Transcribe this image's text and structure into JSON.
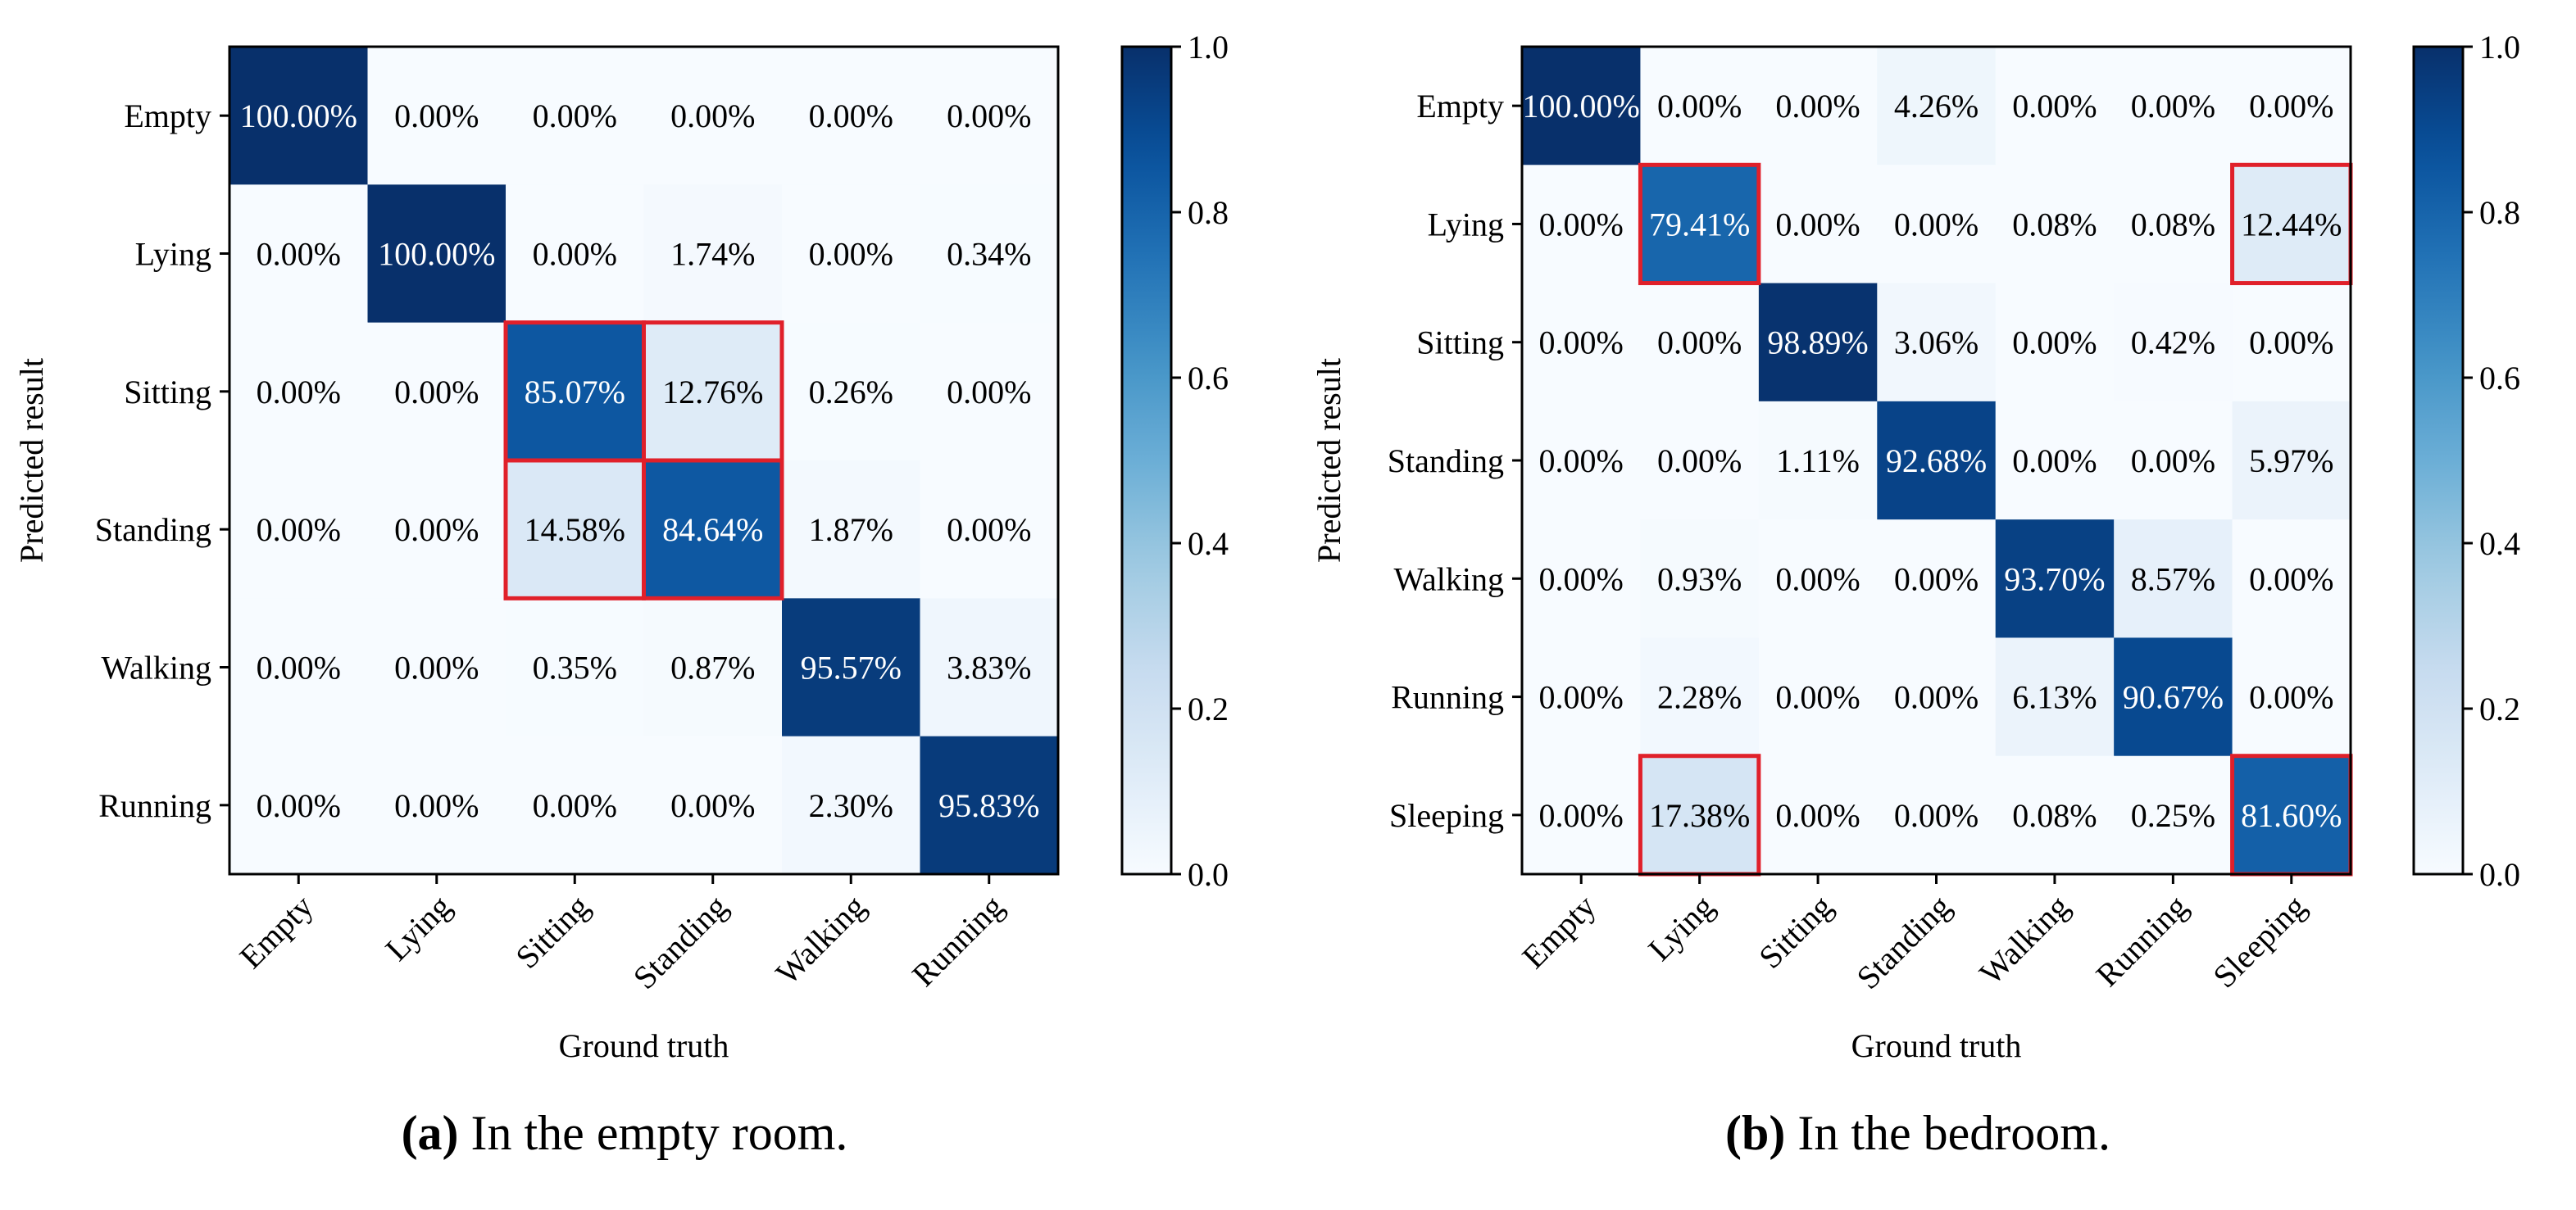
{
  "chart_data": [
    {
      "type": "heatmap",
      "title": "",
      "xlabel": "Ground truth",
      "ylabel": "Predicted result",
      "categories_x": [
        "Empty",
        "Lying",
        "Sitting",
        "Standing",
        "Walking",
        "Running"
      ],
      "categories_y": [
        "Empty",
        "Lying",
        "Sitting",
        "Standing",
        "Walking",
        "Running"
      ],
      "values": [
        [
          100.0,
          0.0,
          0.0,
          0.0,
          0.0,
          0.0
        ],
        [
          0.0,
          100.0,
          0.0,
          1.74,
          0.0,
          0.34
        ],
        [
          0.0,
          0.0,
          85.07,
          12.76,
          0.26,
          0.0
        ],
        [
          0.0,
          0.0,
          14.58,
          84.64,
          1.87,
          0.0
        ],
        [
          0.0,
          0.0,
          0.35,
          0.87,
          95.57,
          3.83
        ],
        [
          0.0,
          0.0,
          0.0,
          0.0,
          2.3,
          95.83
        ]
      ],
      "value_format": "percent_2dp",
      "colormap": "Blues",
      "colorbar_range": [
        0.0,
        1.0
      ],
      "colorbar_ticks": [
        "0.0",
        "0.2",
        "0.4",
        "0.6",
        "0.8",
        "1.0"
      ],
      "highlight_box": {
        "rows": [
          2,
          3
        ],
        "cols": [
          2,
          3
        ],
        "color": "#e0202a"
      },
      "caption_label": "(a)",
      "caption_text": " In the empty room."
    },
    {
      "type": "heatmap",
      "title": "",
      "xlabel": "Ground truth",
      "ylabel": "Predicted result",
      "categories_x": [
        "Empty",
        "Lying",
        "Sitting",
        "Standing",
        "Walking",
        "Running",
        "Sleeping"
      ],
      "categories_y": [
        "Empty",
        "Lying",
        "Sitting",
        "Standing",
        "Walking",
        "Running",
        "Sleeping"
      ],
      "values": [
        [
          100.0,
          0.0,
          0.0,
          4.26,
          0.0,
          0.0,
          0.0
        ],
        [
          0.0,
          79.41,
          0.0,
          0.0,
          0.08,
          0.08,
          12.44
        ],
        [
          0.0,
          0.0,
          98.89,
          3.06,
          0.0,
          0.42,
          0.0
        ],
        [
          0.0,
          0.0,
          1.11,
          92.68,
          0.0,
          0.0,
          5.97
        ],
        [
          0.0,
          0.93,
          0.0,
          0.0,
          93.7,
          8.57,
          0.0
        ],
        [
          0.0,
          2.28,
          0.0,
          0.0,
          6.13,
          90.67,
          0.0
        ],
        [
          0.0,
          17.38,
          0.0,
          0.0,
          0.08,
          0.25,
          81.6
        ]
      ],
      "value_format": "percent_2dp",
      "colormap": "Blues",
      "colorbar_range": [
        0.0,
        1.0
      ],
      "colorbar_ticks": [
        "0.0",
        "0.2",
        "0.4",
        "0.6",
        "0.8",
        "1.0"
      ],
      "highlight_cells": [
        [
          1,
          1
        ],
        [
          1,
          6
        ],
        [
          6,
          1
        ],
        [
          6,
          6
        ]
      ],
      "highlight_color": "#e0202a",
      "caption_label": "(b)",
      "caption_text": " In the bedroom."
    }
  ]
}
